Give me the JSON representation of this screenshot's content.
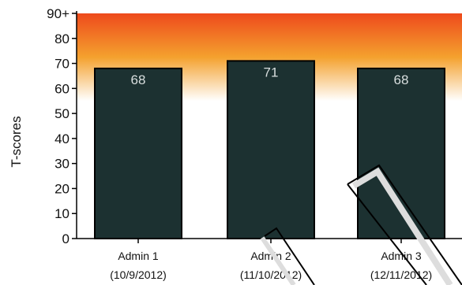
{
  "chart_data": {
    "type": "bar",
    "ylabel": "T-scores",
    "ylim": [
      0,
      90
    ],
    "yticks": [
      "0",
      "10",
      "20",
      "30",
      "40",
      "50",
      "60",
      "70",
      "80",
      "90+"
    ],
    "categories": [
      "Admin 1",
      "Admin 2",
      "Admin 3"
    ],
    "category_dates": [
      "(10/9/2012)",
      "(11/10/2012)",
      "(12/11/2012)"
    ],
    "values": [
      68,
      71,
      68
    ],
    "data_labels": [
      "68",
      "71",
      "68"
    ],
    "grid": false,
    "background_gradient": {
      "from_value": 55,
      "to_value": 90,
      "colors": [
        "#ffffff",
        "#f4a12e",
        "#ee4a1c"
      ]
    },
    "bar_color": "#1c3131",
    "bar_outline_color": "#000000",
    "data_label_color": "#d8dede"
  }
}
